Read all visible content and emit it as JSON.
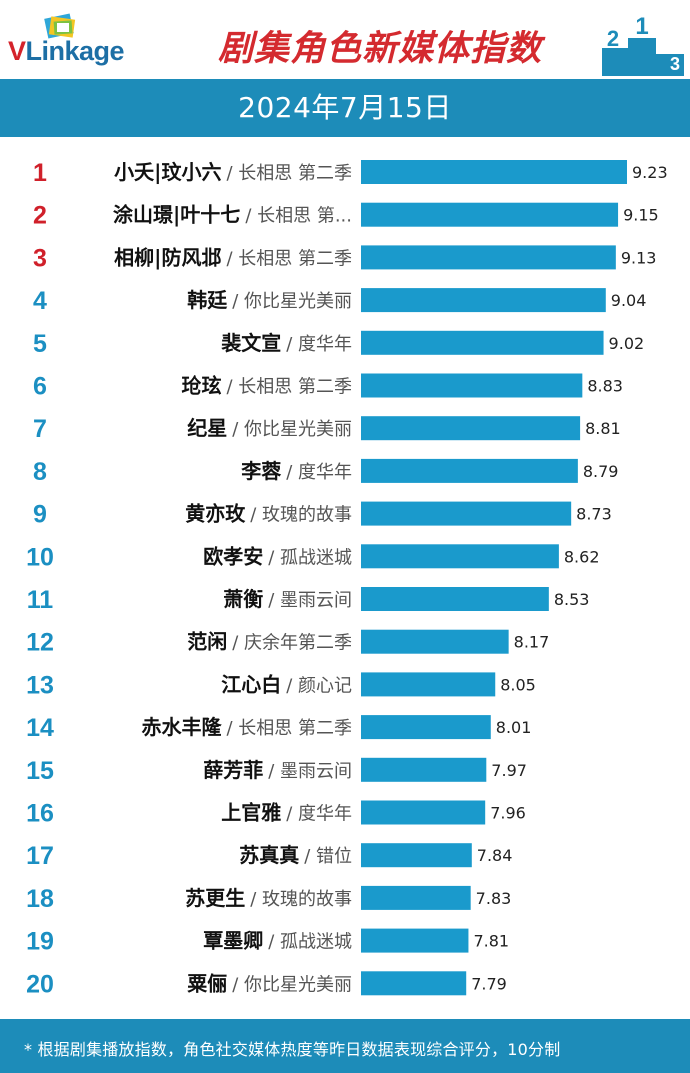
{
  "brand": {
    "logo_v": "V",
    "logo_rest": "Linkage",
    "title": "剧集角色新媒体指数",
    "podium_digits": [
      "2",
      "1",
      "3"
    ]
  },
  "date": "2024年7月15日",
  "colors": {
    "bar": "#1a9acc",
    "banner": "#1d8cb9",
    "rank_top": "#d0202a",
    "rank_other": "#1b8fc2"
  },
  "chart_data": {
    "type": "bar",
    "orientation": "horizontal",
    "title": "剧集角色新媒体指数",
    "xlim": [
      0,
      10
    ],
    "rows": [
      {
        "rank": "1",
        "character": "小夭|玟小六",
        "show": "/ 长相思 第二季",
        "value": 9.23
      },
      {
        "rank": "2",
        "character": "涂山璟|叶十七",
        "show": "/ 长相思 第...",
        "value": 9.15
      },
      {
        "rank": "3",
        "character": "相柳|防风邶",
        "show": "/ 长相思 第二季",
        "value": 9.13
      },
      {
        "rank": "4",
        "character": "韩廷",
        "show": "/ 你比星光美丽",
        "value": 9.04
      },
      {
        "rank": "5",
        "character": "裴文宣",
        "show": "/ 度华年",
        "value": 9.02
      },
      {
        "rank": "6",
        "character": "玱玹",
        "show": "/ 长相思 第二季",
        "value": 8.83
      },
      {
        "rank": "7",
        "character": "纪星",
        "show": "/ 你比星光美丽",
        "value": 8.81
      },
      {
        "rank": "8",
        "character": "李蓉",
        "show": "/ 度华年",
        "value": 8.79
      },
      {
        "rank": "9",
        "character": "黄亦玫",
        "show": "/ 玫瑰的故事",
        "value": 8.73
      },
      {
        "rank": "10",
        "character": "欧孝安",
        "show": "/ 孤战迷城",
        "value": 8.62
      },
      {
        "rank": "11",
        "character": "萧衡",
        "show": "/ 墨雨云间",
        "value": 8.53
      },
      {
        "rank": "12",
        "character": "范闲",
        "show": "/ 庆余年第二季",
        "value": 8.17
      },
      {
        "rank": "13",
        "character": "江心白",
        "show": "/ 颜心记",
        "value": 8.05
      },
      {
        "rank": "14",
        "character": "赤水丰隆",
        "show": "/ 长相思 第二季",
        "value": 8.01
      },
      {
        "rank": "15",
        "character": "薛芳菲",
        "show": "/ 墨雨云间",
        "value": 7.97
      },
      {
        "rank": "16",
        "character": "上官雅",
        "show": "/ 度华年",
        "value": 7.96
      },
      {
        "rank": "17",
        "character": "苏真真",
        "show": "/ 错位",
        "value": 7.84
      },
      {
        "rank": "18",
        "character": "苏更生",
        "show": "/ 玫瑰的故事",
        "value": 7.83
      },
      {
        "rank": "19",
        "character": "覃墨卿",
        "show": "/ 孤战迷城",
        "value": 7.81
      },
      {
        "rank": "20",
        "character": "粟俪",
        "show": "/ 你比星光美丽",
        "value": 7.79
      }
    ]
  },
  "footer": {
    "note": "* 根据剧集播放指数，角色社交媒体热度等昨日数据表现综合评分，10分制"
  }
}
